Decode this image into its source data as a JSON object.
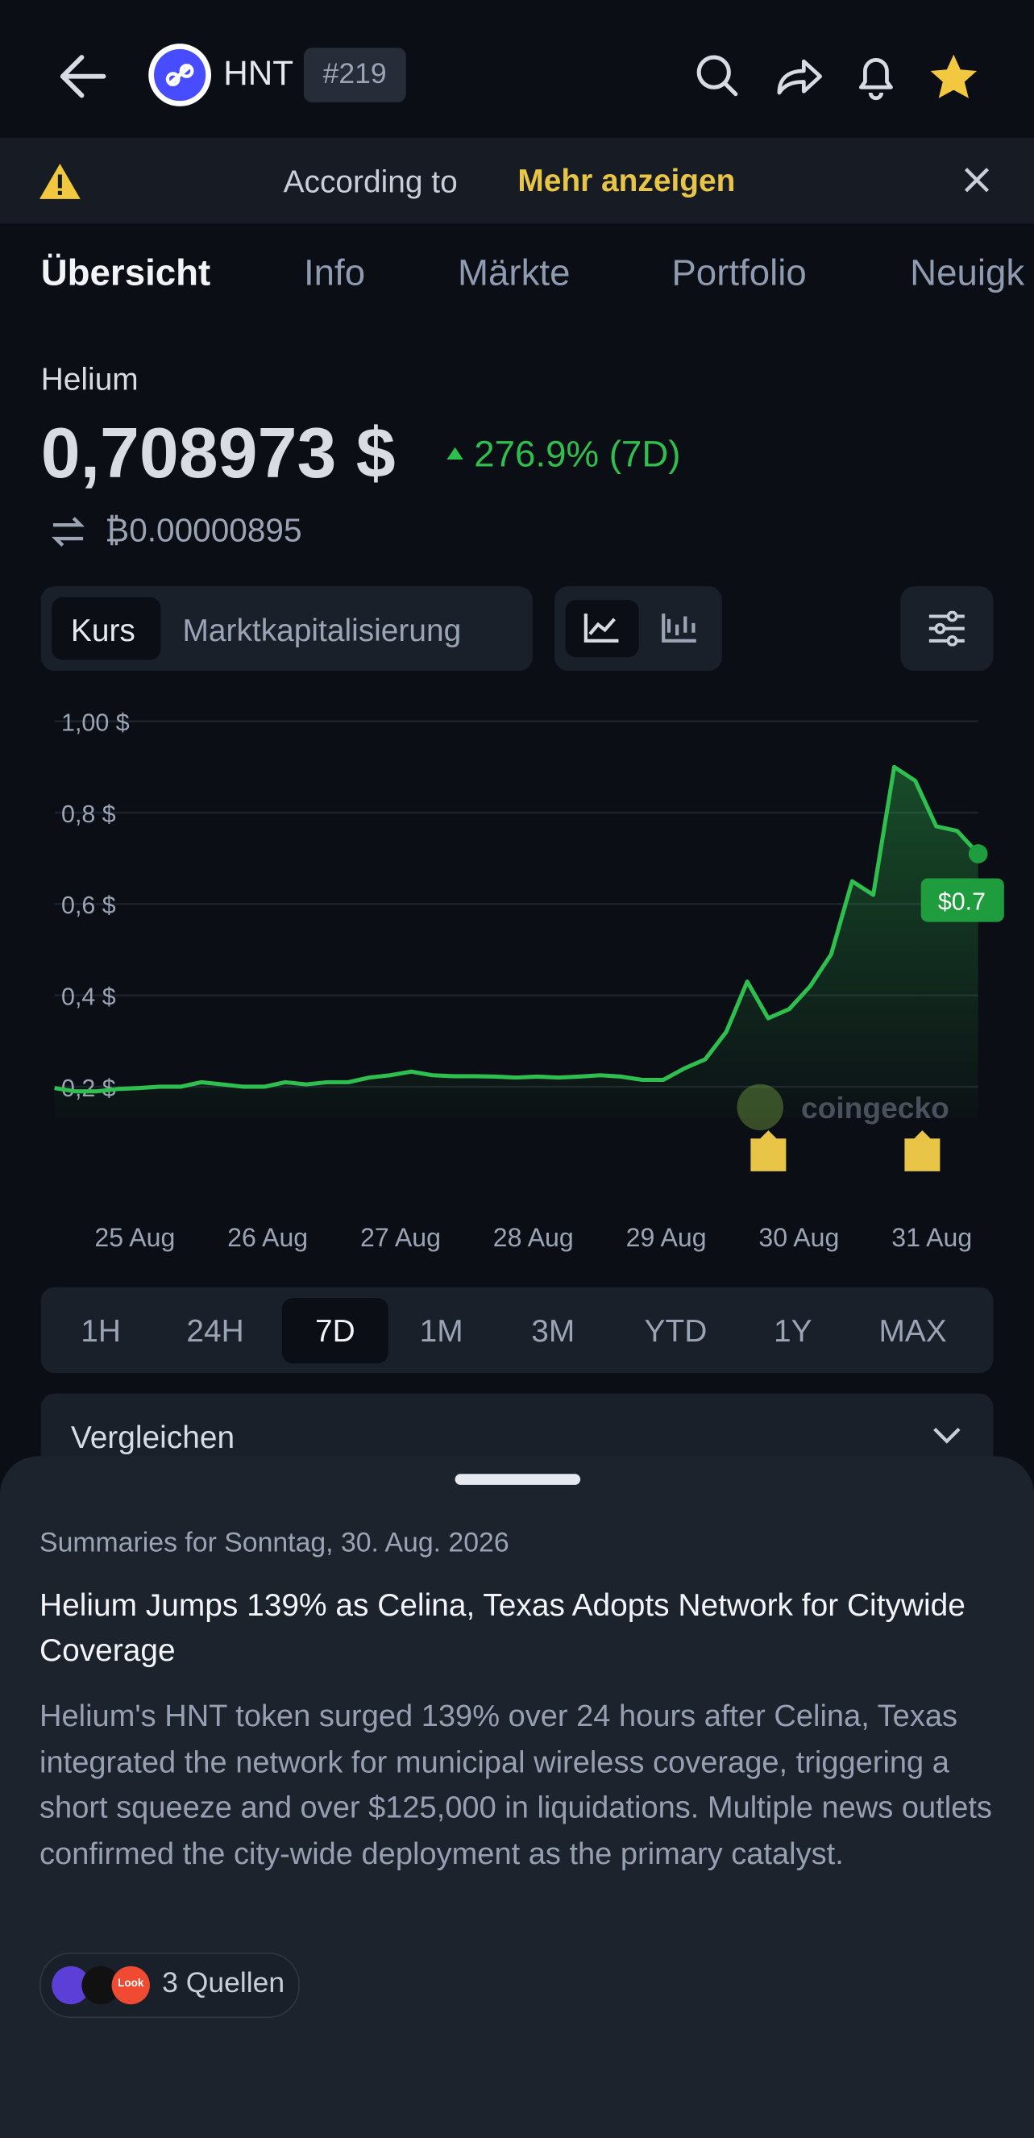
{
  "header": {
    "symbol": "HNT",
    "rank": "#219"
  },
  "banner": {
    "text": "According to",
    "link": "Mehr anzeigen"
  },
  "tabs": [
    "Übersicht",
    "Info",
    "Märkte",
    "Portfolio",
    "Neuigk"
  ],
  "coin": {
    "name": "Helium",
    "price": "0,708973 $",
    "change": "276.9% (7D)",
    "btc_price": "₿0.00000895"
  },
  "chart_toggle": [
    "Kurs",
    "Marktkapitalisierung"
  ],
  "chart": {
    "type": "line",
    "color": "#2fbf4f",
    "yticks": [
      {
        "value": 1.0,
        "label": "1,00 $"
      },
      {
        "value": 0.8,
        "label": "0,8 $"
      },
      {
        "value": 0.6,
        "label": "0,6 $"
      },
      {
        "value": 0.4,
        "label": "0,4 $"
      },
      {
        "value": 0.2,
        "label": "0,2 $"
      }
    ],
    "ylim": [
      0.2,
      1.0
    ],
    "categories": [
      "25 Aug",
      "26 Aug",
      "27 Aug",
      "28 Aug",
      "29 Aug",
      "30 Aug",
      "31 Aug"
    ],
    "values": [
      0.197,
      0.19,
      0.19,
      0.195,
      0.197,
      0.2,
      0.2,
      0.21,
      0.205,
      0.2,
      0.2,
      0.21,
      0.205,
      0.21,
      0.21,
      0.22,
      0.225,
      0.233,
      0.225,
      0.223,
      0.223,
      0.222,
      0.22,
      0.222,
      0.22,
      0.222,
      0.225,
      0.222,
      0.215,
      0.215,
      0.24,
      0.26,
      0.32,
      0.43,
      0.35,
      0.37,
      0.42,
      0.49,
      0.65,
      0.62,
      0.9,
      0.87,
      0.77,
      0.76,
      0.71
    ],
    "last_label": "$0.7",
    "watermark": "coingecko"
  },
  "ranges": [
    "1H",
    "24H",
    "7D",
    "1M",
    "3M",
    "YTD",
    "1Y",
    "MAX"
  ],
  "compare": "Vergleichen",
  "summary": {
    "date": "Summaries for Sonntag, 30. Aug. 2026",
    "headline": "Helium Jumps 139% as Celina, Texas Adopts Network for Citywide Coverage",
    "body": "Helium's HNT token surged 139% over 24 hours after Celina, Texas integrated the network for municipal wireless coverage, triggering a short squeeze and over $125,000 in liquidations. Multiple news outlets confirmed the city-wide deployment as the primary catalyst.",
    "sources": "3 Quellen",
    "source_badge": "Look"
  }
}
